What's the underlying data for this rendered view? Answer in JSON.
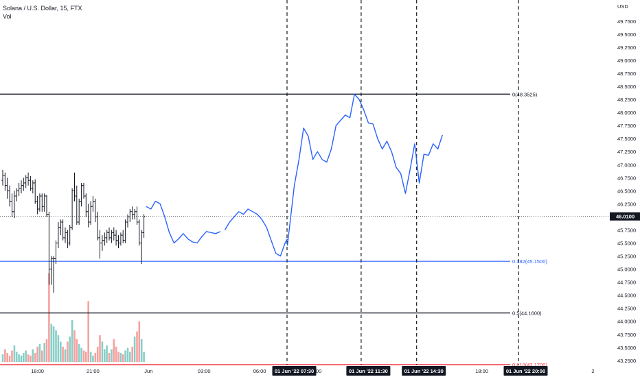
{
  "legend": {
    "symbol_line": "Solana / U.S. Dollar, 15, FTX",
    "volume_label": "Vol"
  },
  "colors": {
    "up": "#26a69a",
    "down": "#ef5350",
    "bar": "#131722",
    "projection": "#2962ff",
    "fib_zero": "#131722",
    "fib_382": "#2962ff",
    "fib_5": "#131722",
    "fib_618": "#f23645"
  },
  "chart_data": {
    "type": "ohlc",
    "currency_label": "USD",
    "ylim": [
      43.13,
      50.05
    ],
    "price_ticks": [
      "49.7500",
      "49.5000",
      "49.2500",
      "49.0000",
      "48.7500",
      "48.5000",
      "48.2500",
      "48.0000",
      "47.7500",
      "47.5000",
      "47.2500",
      "47.0000",
      "46.7500",
      "46.5000",
      "46.2500",
      "45.7500",
      "45.5000",
      "45.2500",
      "45.0000",
      "44.7500",
      "44.5000",
      "44.2500",
      "44.0000",
      "43.7500",
      "43.5000",
      "43.2500"
    ],
    "last_price": "46.0100",
    "time_ticks": [
      {
        "bar": 15,
        "label": "18:00"
      },
      {
        "bar": 39,
        "label": "21:00"
      },
      {
        "bar": 63,
        "label": "Jun"
      },
      {
        "bar": 87,
        "label": "03:00"
      },
      {
        "bar": 111,
        "label": "06:00"
      },
      {
        "bar": 135,
        "label": "09:00"
      },
      {
        "bar": 207,
        "label": "18:00"
      },
      {
        "bar": 255,
        "label": "2"
      }
    ],
    "time_badges": [
      {
        "bar": 123,
        "label": "01 Jun '22   07:30"
      },
      {
        "bar": 155,
        "label": "01 Jun '22   11:30"
      },
      {
        "bar": 179,
        "label": "01 Jun '22   14:30"
      },
      {
        "bar": 223,
        "label": "01 Jun '22   20:00"
      }
    ],
    "candles": [
      [
        46.7,
        46.9,
        46.6,
        46.8
      ],
      [
        46.8,
        46.85,
        46.5,
        46.6
      ],
      [
        46.6,
        46.75,
        46.35,
        46.5
      ],
      [
        46.5,
        46.6,
        46.2,
        46.3
      ],
      [
        46.3,
        46.45,
        46.0,
        46.1
      ],
      [
        46.1,
        46.5,
        45.98,
        46.4
      ],
      [
        46.4,
        46.55,
        46.3,
        46.5
      ],
      [
        46.5,
        46.65,
        46.4,
        46.55
      ],
      [
        46.55,
        46.7,
        46.45,
        46.6
      ],
      [
        46.6,
        46.75,
        46.5,
        46.65
      ],
      [
        46.65,
        46.8,
        46.55,
        46.75
      ],
      [
        46.75,
        46.85,
        46.6,
        46.7
      ],
      [
        46.7,
        46.78,
        46.5,
        46.55
      ],
      [
        46.55,
        46.7,
        46.45,
        46.65
      ],
      [
        46.65,
        46.72,
        46.25,
        46.3
      ],
      [
        46.3,
        46.4,
        46.05,
        46.15
      ],
      [
        46.15,
        46.45,
        46.1,
        46.4
      ],
      [
        46.4,
        46.45,
        46.1,
        46.2
      ],
      [
        46.2,
        46.45,
        46.1,
        46.4
      ],
      [
        46.4,
        46.42,
        46.0,
        46.05
      ],
      [
        46.05,
        46.1,
        44.7,
        45.0
      ],
      [
        45.0,
        45.25,
        44.7,
        45.2
      ],
      [
        45.2,
        45.25,
        44.55,
        45.2
      ],
      [
        45.2,
        45.55,
        45.1,
        45.5
      ],
      [
        45.5,
        45.9,
        45.4,
        45.8
      ],
      [
        45.8,
        45.95,
        45.65,
        45.9
      ],
      [
        45.9,
        45.95,
        45.55,
        45.6
      ],
      [
        45.6,
        45.8,
        45.5,
        45.7
      ],
      [
        45.7,
        45.75,
        45.4,
        45.5
      ],
      [
        45.5,
        45.85,
        45.45,
        45.8
      ],
      [
        45.8,
        46.55,
        45.75,
        46.5
      ],
      [
        46.5,
        46.85,
        46.3,
        46.4
      ],
      [
        46.4,
        46.6,
        45.85,
        45.9
      ],
      [
        45.9,
        46.35,
        45.85,
        46.3
      ],
      [
        46.3,
        46.65,
        46.2,
        46.6
      ],
      [
        46.6,
        46.65,
        46.35,
        46.4
      ],
      [
        46.4,
        46.45,
        46.0,
        46.1
      ],
      [
        46.1,
        46.25,
        45.8,
        45.9
      ],
      [
        45.9,
        46.3,
        45.85,
        46.2
      ],
      [
        46.2,
        46.4,
        46.1,
        46.3
      ],
      [
        46.3,
        46.35,
        45.9,
        46.0
      ],
      [
        46.0,
        46.1,
        45.55,
        45.6
      ],
      [
        45.6,
        45.75,
        45.2,
        45.5
      ],
      [
        45.5,
        45.65,
        45.35,
        45.55
      ],
      [
        45.55,
        45.7,
        45.45,
        45.6
      ],
      [
        45.6,
        45.75,
        45.5,
        45.7
      ],
      [
        45.7,
        45.8,
        45.55,
        45.6
      ],
      [
        45.6,
        45.75,
        45.5,
        45.7
      ],
      [
        45.7,
        45.8,
        45.55,
        45.65
      ],
      [
        45.65,
        45.75,
        45.45,
        45.55
      ],
      [
        45.55,
        45.65,
        45.4,
        45.5
      ],
      [
        45.5,
        45.7,
        45.45,
        45.65
      ],
      [
        45.65,
        45.75,
        45.5,
        45.55
      ],
      [
        45.55,
        45.95,
        45.5,
        45.9
      ],
      [
        45.9,
        46.05,
        45.8,
        46.0
      ],
      [
        46.0,
        46.15,
        45.9,
        46.1
      ],
      [
        46.1,
        46.2,
        45.95,
        46.05
      ],
      [
        46.05,
        46.15,
        45.95,
        46.1
      ],
      [
        46.1,
        46.2,
        45.85,
        45.9
      ],
      [
        45.9,
        45.95,
        45.45,
        45.5
      ],
      [
        45.5,
        45.75,
        45.1,
        45.7
      ],
      [
        45.7,
        46.05,
        45.6,
        46.0
      ]
    ],
    "volumes": [
      0.06,
      0.1,
      0.07,
      0.05,
      0.09,
      0.13,
      0.08,
      0.06,
      0.05,
      0.07,
      0.09,
      0.06,
      0.05,
      0.1,
      0.07,
      0.12,
      0.14,
      0.09,
      0.15,
      0.18,
      0.7,
      0.3,
      0.28,
      0.25,
      0.21,
      0.16,
      0.12,
      0.1,
      0.16,
      0.2,
      0.33,
      0.25,
      0.18,
      0.14,
      0.11,
      0.09,
      0.08,
      0.48,
      0.08,
      0.05,
      0.07,
      0.12,
      0.21,
      0.16,
      0.1,
      0.13,
      0.07,
      0.1,
      0.18,
      0.12,
      0.08,
      0.07,
      0.06,
      0.09,
      0.11,
      0.08,
      0.12,
      0.2,
      0.24,
      0.32,
      0.18,
      0.08
    ],
    "projection": [
      [
        123,
        45.45
      ],
      [
        126,
        46.6
      ],
      [
        128,
        47.1
      ],
      [
        130,
        47.7
      ],
      [
        132,
        47.55
      ],
      [
        134,
        47.1
      ],
      [
        136,
        47.25
      ],
      [
        138,
        47.1
      ],
      [
        140,
        47.05
      ],
      [
        142,
        47.3
      ],
      [
        144,
        47.75
      ],
      [
        146,
        47.85
      ],
      [
        148,
        47.95
      ],
      [
        150,
        47.9
      ],
      [
        152,
        48.35
      ],
      [
        154,
        48.25
      ],
      [
        156,
        48.05
      ],
      [
        158,
        47.8
      ],
      [
        160,
        47.78
      ],
      [
        162,
        47.5
      ],
      [
        164,
        47.3
      ],
      [
        166,
        47.45
      ],
      [
        168,
        47.25
      ],
      [
        170,
        46.95
      ],
      [
        172,
        46.83
      ],
      [
        174,
        46.45
      ],
      [
        176,
        46.9
      ],
      [
        178,
        47.4
      ],
      [
        180,
        46.65
      ],
      [
        182,
        47.2
      ],
      [
        184,
        47.18
      ],
      [
        186,
        47.4
      ],
      [
        188,
        47.3
      ],
      [
        190,
        47.57
      ]
    ],
    "ma_line": [
      [
        96,
        45.75
      ],
      [
        98,
        45.9
      ],
      [
        100,
        46.0
      ],
      [
        102,
        46.1
      ],
      [
        104,
        46.05
      ],
      [
        106,
        46.15
      ],
      [
        108,
        46.1
      ],
      [
        110,
        46.05
      ],
      [
        112,
        45.95
      ],
      [
        114,
        45.8
      ],
      [
        116,
        45.55
      ],
      [
        118,
        45.3
      ],
      [
        120,
        45.25
      ],
      [
        122,
        45.5
      ],
      [
        123,
        45.58
      ]
    ],
    "ma_line_early": [
      [
        62,
        46.2
      ],
      [
        64,
        46.15
      ],
      [
        66,
        46.3
      ],
      [
        68,
        46.25
      ],
      [
        70,
        46.0
      ],
      [
        72,
        45.7
      ],
      [
        74,
        45.5
      ],
      [
        76,
        45.58
      ],
      [
        78,
        45.68
      ],
      [
        80,
        45.58
      ],
      [
        82,
        45.52
      ],
      [
        84,
        45.5
      ],
      [
        86,
        45.62
      ],
      [
        88,
        45.72
      ],
      [
        90,
        45.7
      ],
      [
        92,
        45.68
      ],
      [
        94,
        45.72
      ]
    ],
    "fib_levels": [
      {
        "key": "fib_zero",
        "value": 48.3525,
        "label": "0(48.3525)"
      },
      {
        "key": "fib_382",
        "value": 45.15,
        "label": "0.382(45.1500)"
      },
      {
        "key": "fib_5",
        "value": 44.16,
        "label": "0.5(44.1600)"
      },
      {
        "key": "fib_618",
        "value": 43.17,
        "label": "0.618(43.1700)"
      }
    ],
    "vertical_markers": [
      123,
      155,
      179,
      223
    ]
  }
}
